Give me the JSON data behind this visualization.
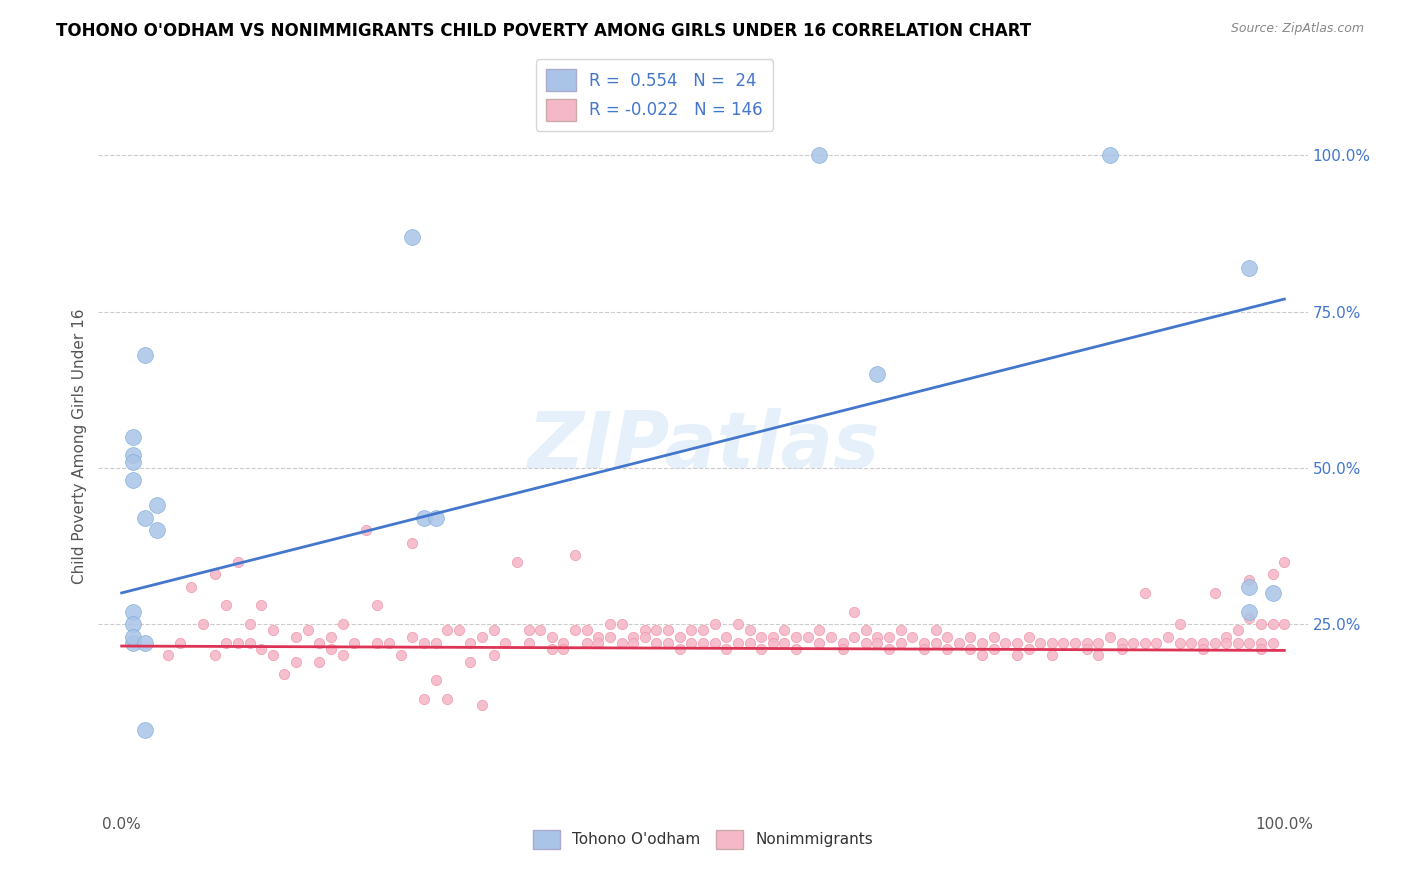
{
  "title": "TOHONO O'ODHAM VS NONIMMIGRANTS CHILD POVERTY AMONG GIRLS UNDER 16 CORRELATION CHART",
  "source": "Source: ZipAtlas.com",
  "ylabel": "Child Poverty Among Girls Under 16",
  "xlim": [
    -0.02,
    1.02
  ],
  "ylim": [
    -0.05,
    1.12
  ],
  "xtick_labels": [
    "0.0%",
    "100.0%"
  ],
  "xtick_vals": [
    0,
    1.0
  ],
  "ytick_labels_right": [
    "25.0%",
    "50.0%",
    "75.0%",
    "100.0%"
  ],
  "ytick_vals": [
    0.25,
    0.5,
    0.75,
    1.0
  ],
  "grid_color": "#cccccc",
  "watermark": "ZIPatlas",
  "blue_color": "#aac4e8",
  "pink_color": "#f5b8c8",
  "blue_scatter_edge": "#7aaad8",
  "pink_scatter_edge": "#f090a8",
  "blue_line_color": "#4477cc",
  "pink_line_color": "#dd3355",
  "tohono_points": [
    [
      0.01,
      0.27
    ],
    [
      0.01,
      0.52
    ],
    [
      0.01,
      0.55
    ],
    [
      0.01,
      0.25
    ],
    [
      0.01,
      0.48
    ],
    [
      0.01,
      0.51
    ],
    [
      0.01,
      0.22
    ],
    [
      0.01,
      0.23
    ],
    [
      0.02,
      0.68
    ],
    [
      0.02,
      0.42
    ],
    [
      0.02,
      0.22
    ],
    [
      0.02,
      0.08
    ],
    [
      0.03,
      0.4
    ],
    [
      0.03,
      0.44
    ],
    [
      0.25,
      0.87
    ],
    [
      0.26,
      0.42
    ],
    [
      0.27,
      0.42
    ],
    [
      0.6,
      1.0
    ],
    [
      0.65,
      0.65
    ],
    [
      0.85,
      1.0
    ],
    [
      0.97,
      0.82
    ],
    [
      0.97,
      0.31
    ],
    [
      0.97,
      0.27
    ],
    [
      0.99,
      0.3
    ]
  ],
  "nonimm_points": [
    [
      0.04,
      0.2
    ],
    [
      0.05,
      0.22
    ],
    [
      0.06,
      0.31
    ],
    [
      0.07,
      0.25
    ],
    [
      0.08,
      0.33
    ],
    [
      0.08,
      0.2
    ],
    [
      0.09,
      0.28
    ],
    [
      0.09,
      0.22
    ],
    [
      0.1,
      0.35
    ],
    [
      0.1,
      0.22
    ],
    [
      0.11,
      0.25
    ],
    [
      0.11,
      0.22
    ],
    [
      0.12,
      0.28
    ],
    [
      0.12,
      0.21
    ],
    [
      0.13,
      0.24
    ],
    [
      0.13,
      0.2
    ],
    [
      0.14,
      0.17
    ],
    [
      0.15,
      0.23
    ],
    [
      0.15,
      0.19
    ],
    [
      0.16,
      0.24
    ],
    [
      0.17,
      0.22
    ],
    [
      0.17,
      0.19
    ],
    [
      0.18,
      0.23
    ],
    [
      0.18,
      0.21
    ],
    [
      0.19,
      0.25
    ],
    [
      0.19,
      0.2
    ],
    [
      0.2,
      0.22
    ],
    [
      0.21,
      0.4
    ],
    [
      0.22,
      0.28
    ],
    [
      0.22,
      0.22
    ],
    [
      0.23,
      0.22
    ],
    [
      0.24,
      0.2
    ],
    [
      0.25,
      0.38
    ],
    [
      0.25,
      0.23
    ],
    [
      0.26,
      0.22
    ],
    [
      0.26,
      0.13
    ],
    [
      0.27,
      0.22
    ],
    [
      0.27,
      0.16
    ],
    [
      0.28,
      0.24
    ],
    [
      0.28,
      0.13
    ],
    [
      0.29,
      0.24
    ],
    [
      0.3,
      0.22
    ],
    [
      0.3,
      0.19
    ],
    [
      0.31,
      0.23
    ],
    [
      0.31,
      0.12
    ],
    [
      0.32,
      0.24
    ],
    [
      0.32,
      0.2
    ],
    [
      0.33,
      0.22
    ],
    [
      0.34,
      0.35
    ],
    [
      0.35,
      0.24
    ],
    [
      0.35,
      0.22
    ],
    [
      0.36,
      0.24
    ],
    [
      0.37,
      0.23
    ],
    [
      0.37,
      0.21
    ],
    [
      0.38,
      0.22
    ],
    [
      0.38,
      0.21
    ],
    [
      0.39,
      0.36
    ],
    [
      0.39,
      0.24
    ],
    [
      0.4,
      0.24
    ],
    [
      0.4,
      0.22
    ],
    [
      0.41,
      0.23
    ],
    [
      0.41,
      0.22
    ],
    [
      0.42,
      0.25
    ],
    [
      0.42,
      0.23
    ],
    [
      0.43,
      0.25
    ],
    [
      0.43,
      0.22
    ],
    [
      0.44,
      0.23
    ],
    [
      0.44,
      0.22
    ],
    [
      0.45,
      0.24
    ],
    [
      0.45,
      0.23
    ],
    [
      0.46,
      0.24
    ],
    [
      0.46,
      0.22
    ],
    [
      0.47,
      0.24
    ],
    [
      0.47,
      0.22
    ],
    [
      0.48,
      0.23
    ],
    [
      0.48,
      0.21
    ],
    [
      0.49,
      0.24
    ],
    [
      0.49,
      0.22
    ],
    [
      0.5,
      0.24
    ],
    [
      0.5,
      0.22
    ],
    [
      0.51,
      0.25
    ],
    [
      0.51,
      0.22
    ],
    [
      0.52,
      0.23
    ],
    [
      0.52,
      0.21
    ],
    [
      0.53,
      0.25
    ],
    [
      0.53,
      0.22
    ],
    [
      0.54,
      0.24
    ],
    [
      0.54,
      0.22
    ],
    [
      0.55,
      0.23
    ],
    [
      0.55,
      0.21
    ],
    [
      0.56,
      0.23
    ],
    [
      0.56,
      0.22
    ],
    [
      0.57,
      0.24
    ],
    [
      0.57,
      0.22
    ],
    [
      0.58,
      0.23
    ],
    [
      0.58,
      0.21
    ],
    [
      0.59,
      0.23
    ],
    [
      0.6,
      0.24
    ],
    [
      0.6,
      0.22
    ],
    [
      0.61,
      0.23
    ],
    [
      0.62,
      0.22
    ],
    [
      0.62,
      0.21
    ],
    [
      0.63,
      0.27
    ],
    [
      0.63,
      0.23
    ],
    [
      0.64,
      0.24
    ],
    [
      0.64,
      0.22
    ],
    [
      0.65,
      0.23
    ],
    [
      0.65,
      0.22
    ],
    [
      0.66,
      0.23
    ],
    [
      0.66,
      0.21
    ],
    [
      0.67,
      0.24
    ],
    [
      0.67,
      0.22
    ],
    [
      0.68,
      0.23
    ],
    [
      0.69,
      0.22
    ],
    [
      0.69,
      0.21
    ],
    [
      0.7,
      0.24
    ],
    [
      0.7,
      0.22
    ],
    [
      0.71,
      0.23
    ],
    [
      0.71,
      0.21
    ],
    [
      0.72,
      0.22
    ],
    [
      0.73,
      0.23
    ],
    [
      0.73,
      0.21
    ],
    [
      0.74,
      0.22
    ],
    [
      0.74,
      0.2
    ],
    [
      0.75,
      0.23
    ],
    [
      0.75,
      0.21
    ],
    [
      0.76,
      0.22
    ],
    [
      0.77,
      0.22
    ],
    [
      0.77,
      0.2
    ],
    [
      0.78,
      0.23
    ],
    [
      0.78,
      0.21
    ],
    [
      0.79,
      0.22
    ],
    [
      0.8,
      0.22
    ],
    [
      0.8,
      0.2
    ],
    [
      0.81,
      0.22
    ],
    [
      0.82,
      0.22
    ],
    [
      0.83,
      0.22
    ],
    [
      0.83,
      0.21
    ],
    [
      0.84,
      0.22
    ],
    [
      0.84,
      0.2
    ],
    [
      0.85,
      0.23
    ],
    [
      0.86,
      0.22
    ],
    [
      0.86,
      0.21
    ],
    [
      0.87,
      0.22
    ],
    [
      0.88,
      0.3
    ],
    [
      0.88,
      0.22
    ],
    [
      0.89,
      0.22
    ],
    [
      0.9,
      0.23
    ],
    [
      0.91,
      0.25
    ],
    [
      0.91,
      0.22
    ],
    [
      0.92,
      0.22
    ],
    [
      0.93,
      0.22
    ],
    [
      0.93,
      0.21
    ],
    [
      0.94,
      0.3
    ],
    [
      0.94,
      0.22
    ],
    [
      0.95,
      0.23
    ],
    [
      0.95,
      0.22
    ],
    [
      0.96,
      0.24
    ],
    [
      0.96,
      0.22
    ],
    [
      0.97,
      0.32
    ],
    [
      0.97,
      0.26
    ],
    [
      0.97,
      0.22
    ],
    [
      0.98,
      0.25
    ],
    [
      0.98,
      0.22
    ],
    [
      0.98,
      0.21
    ],
    [
      0.99,
      0.33
    ],
    [
      0.99,
      0.25
    ],
    [
      0.99,
      0.22
    ],
    [
      1.0,
      0.35
    ],
    [
      1.0,
      0.25
    ]
  ],
  "blue_trendline": [
    [
      0,
      0.3
    ],
    [
      1.0,
      0.77
    ]
  ],
  "pink_trendline": [
    [
      0,
      0.215
    ],
    [
      1.0,
      0.208
    ]
  ]
}
